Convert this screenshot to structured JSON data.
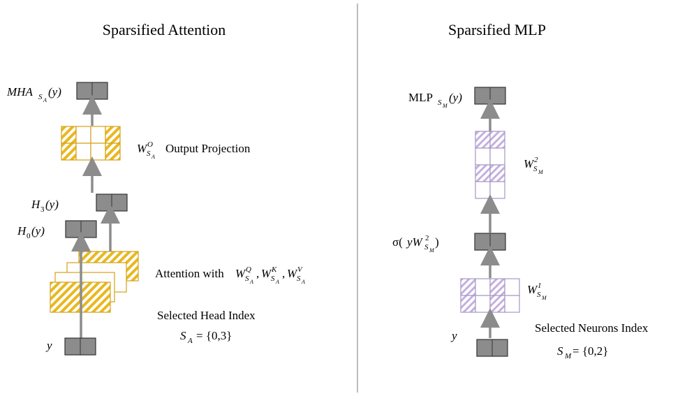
{
  "left": {
    "title": "Sparsified Attention",
    "output_label": [
      "MHA",
      "S",
      "A",
      "(y)"
    ],
    "projection_weight": [
      "W",
      "O",
      "S",
      "A"
    ],
    "projection_text": "Output Projection",
    "head3_label": [
      "H",
      "3",
      "(y)"
    ],
    "head0_label": [
      "H",
      "0",
      "(y)"
    ],
    "attention_text": "Attention with",
    "attention_weights": [
      [
        "W",
        "Q",
        "S",
        "A"
      ],
      [
        "W",
        "K",
        "S",
        "A"
      ],
      [
        "W",
        "V",
        "S",
        "A"
      ]
    ],
    "separator": ",",
    "index_title": "Selected Head Index",
    "index_set": [
      "S",
      "A",
      "= {0,3}"
    ],
    "input_label": "y"
  },
  "right": {
    "title": "Sparsified MLP",
    "output_label": [
      "MLP",
      "S",
      "M",
      "(y)"
    ],
    "weight2": [
      "W",
      "2",
      "S",
      "M"
    ],
    "activation_label": [
      "σ(",
      "yW",
      "2",
      "S",
      "M",
      ")"
    ],
    "weight1": [
      "W",
      "1",
      "S",
      "M"
    ],
    "index_title": "Selected Neurons Index",
    "index_set": [
      "S",
      "M",
      "= {0,2}"
    ],
    "input_label": "y"
  }
}
